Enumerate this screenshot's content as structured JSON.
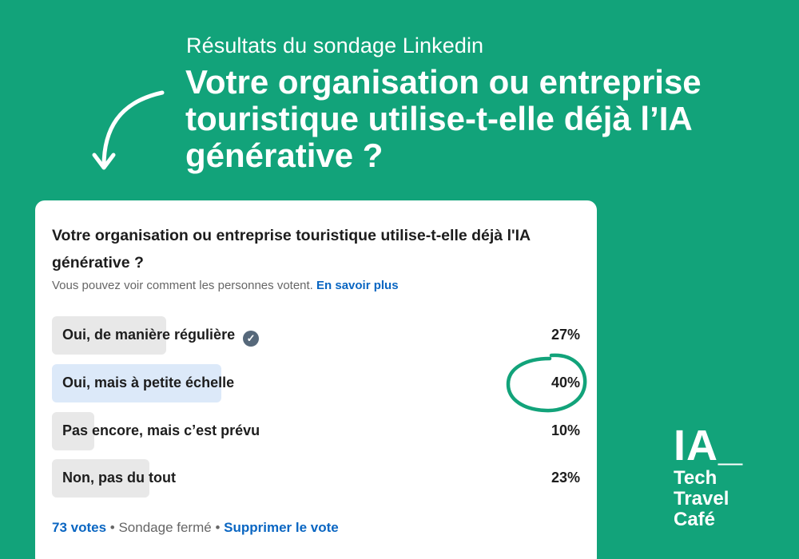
{
  "header": {
    "subtitle": "Résultats du sondage Linkedin",
    "headline": "Votre organisation ou entreprise touristique utilise-t-elle déjà l’IA générative ?"
  },
  "poll": {
    "question": "Votre organisation ou entreprise touristique utilise-t-elle déjà l'IA générative ?",
    "note": "Vous pouvez voir comment les personnes votent.",
    "note_link": "En savoir plus",
    "options": [
      {
        "label": "Oui, de manière régulière",
        "percent": "27%",
        "value": 27,
        "voted": true
      },
      {
        "label": "Oui, mais à petite échelle",
        "percent": "40%",
        "value": 40,
        "voted": false,
        "highlighted": true
      },
      {
        "label": "Pas encore, mais c’est prévu",
        "percent": "10%",
        "value": 10,
        "voted": false
      },
      {
        "label": "Non, pas du tout",
        "percent": "23%",
        "value": 23,
        "voted": false
      }
    ],
    "votes": "73 votes",
    "status": "Sondage fermé",
    "remove_vote": "Supprimer le vote",
    "separator": "•"
  },
  "logo": {
    "main": "IA_",
    "line1": "Tech",
    "line2": "Travel",
    "line3": "Café"
  },
  "colors": {
    "background": "#12a37a",
    "link": "#0a66c2",
    "bar": "#e8e8e8",
    "bar_selected": "#dce9f9"
  }
}
